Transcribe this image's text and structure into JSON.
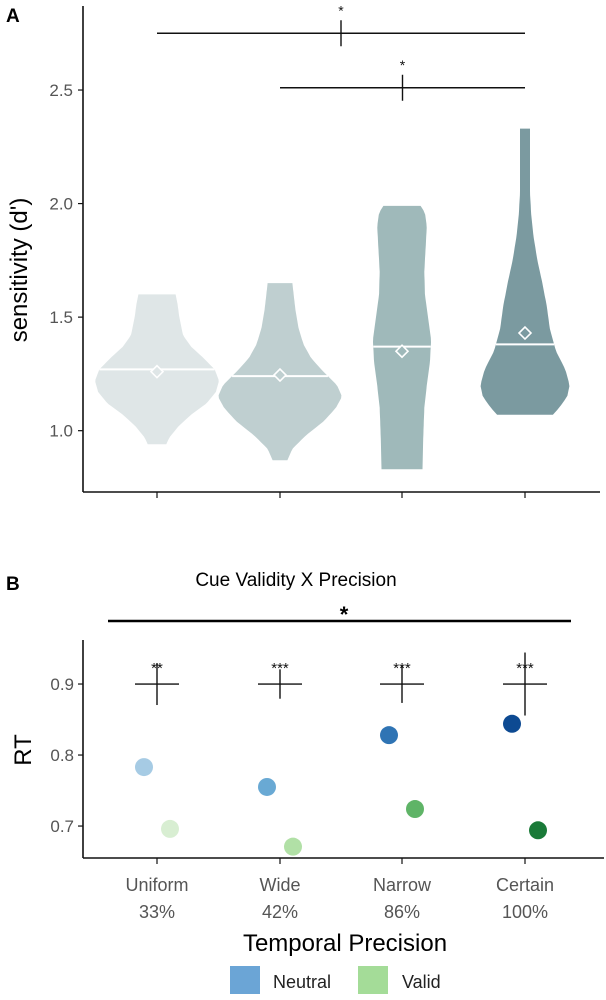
{
  "panel_a_label": "A",
  "panel_b_label": "B",
  "chart_data": [
    {
      "type": "violin",
      "panel": "A",
      "ylabel": "sensitivity (d')",
      "xlabel": "",
      "ylim": [
        0.73,
        2.87
      ],
      "yticks": [
        1.0,
        1.5,
        2.0,
        2.5
      ],
      "ytick_labels": [
        "1.0",
        "1.5",
        "2.0",
        "2.5"
      ],
      "groups": [
        {
          "min": 0.94,
          "max": 1.6,
          "median": 1.27,
          "mean": 1.26,
          "color": "#dfe6e7",
          "profile": [
            [
              0.94,
              0.15
            ],
            [
              0.97,
              0.2
            ],
            [
              1.02,
              0.35
            ],
            [
              1.07,
              0.55
            ],
            [
              1.12,
              0.8
            ],
            [
              1.17,
              0.95
            ],
            [
              1.22,
              1.0
            ],
            [
              1.27,
              0.93
            ],
            [
              1.32,
              0.75
            ],
            [
              1.37,
              0.55
            ],
            [
              1.42,
              0.42
            ],
            [
              1.5,
              0.36
            ],
            [
              1.56,
              0.33
            ],
            [
              1.6,
              0.3
            ]
          ]
        },
        {
          "min": 0.87,
          "max": 1.65,
          "median": 1.24,
          "mean": 1.245,
          "color": "#bfcfd0",
          "profile": [
            [
              0.87,
              0.12
            ],
            [
              0.92,
              0.2
            ],
            [
              0.98,
              0.42
            ],
            [
              1.04,
              0.7
            ],
            [
              1.1,
              0.9
            ],
            [
              1.15,
              1.0
            ],
            [
              1.2,
              0.92
            ],
            [
              1.26,
              0.7
            ],
            [
              1.32,
              0.5
            ],
            [
              1.38,
              0.38
            ],
            [
              1.45,
              0.3
            ],
            [
              1.53,
              0.25
            ],
            [
              1.6,
              0.22
            ],
            [
              1.65,
              0.2
            ]
          ]
        },
        {
          "min": 0.83,
          "max": 1.99,
          "median": 1.37,
          "mean": 1.35,
          "color": "#9fb9ba",
          "profile": [
            [
              0.83,
              0.33
            ],
            [
              0.95,
              0.34
            ],
            [
              1.1,
              0.36
            ],
            [
              1.2,
              0.4
            ],
            [
              1.3,
              0.45
            ],
            [
              1.4,
              0.47
            ],
            [
              1.5,
              0.42
            ],
            [
              1.6,
              0.37
            ],
            [
              1.7,
              0.36
            ],
            [
              1.8,
              0.38
            ],
            [
              1.9,
              0.4
            ],
            [
              1.96,
              0.37
            ],
            [
              1.99,
              0.3
            ]
          ]
        },
        {
          "min": 1.07,
          "max": 2.33,
          "median": 1.38,
          "mean": 1.43,
          "color": "#7b9aa0",
          "profile": [
            [
              1.07,
              0.45
            ],
            [
              1.1,
              0.55
            ],
            [
              1.15,
              0.68
            ],
            [
              1.2,
              0.72
            ],
            [
              1.27,
              0.65
            ],
            [
              1.35,
              0.5
            ],
            [
              1.45,
              0.4
            ],
            [
              1.55,
              0.35
            ],
            [
              1.65,
              0.28
            ],
            [
              1.75,
              0.2
            ],
            [
              1.85,
              0.14
            ],
            [
              1.95,
              0.1
            ],
            [
              2.05,
              0.08
            ],
            [
              2.15,
              0.08
            ],
            [
              2.25,
              0.08
            ],
            [
              2.33,
              0.08
            ]
          ]
        }
      ],
      "significance": [
        {
          "from": 0,
          "to": 3,
          "y": 2.75,
          "label": "*"
        },
        {
          "from": 1,
          "to": 3,
          "y": 2.51,
          "label": "*"
        }
      ]
    },
    {
      "type": "scatter",
      "panel": "B",
      "title": "Cue Validity X Precision",
      "xlabel": "Temporal Precision",
      "ylabel": "RT",
      "categories": [
        "Uniform",
        "Wide",
        "Narrow",
        "Certain"
      ],
      "category_sublabels": [
        "33%",
        "42%",
        "86%",
        "100%"
      ],
      "ylim": [
        0.655,
        0.962
      ],
      "yticks": [
        0.7,
        0.8,
        0.9
      ],
      "ytick_labels": [
        "0.7",
        "0.8",
        "0.9"
      ],
      "interaction_label": "*",
      "series": [
        {
          "name": "Neutral",
          "values": [
            0.783,
            0.755,
            0.828,
            0.844
          ],
          "colors": [
            "#a6cbe4",
            "#69a9d4",
            "#2f74b4",
            "#0d4a92"
          ]
        },
        {
          "name": "Valid",
          "values": [
            0.696,
            0.671,
            0.724,
            0.694
          ],
          "colors": [
            "#d8eed2",
            "#b1e0a6",
            "#5fb467",
            "#1a7a38"
          ]
        }
      ],
      "reference_marks": [
        {
          "y": 0.9,
          "label": "**",
          "size": 1.0
        },
        {
          "y": 0.9,
          "label": "***",
          "size": 0.7
        },
        {
          "y": 0.9,
          "label": "***",
          "size": 0.9
        },
        {
          "y": 0.9,
          "label": "***",
          "size": 1.5
        }
      ],
      "legend": {
        "position": "bottom",
        "swatch_colors": [
          "#6ba5d6",
          "#a4dc98"
        ]
      }
    }
  ]
}
